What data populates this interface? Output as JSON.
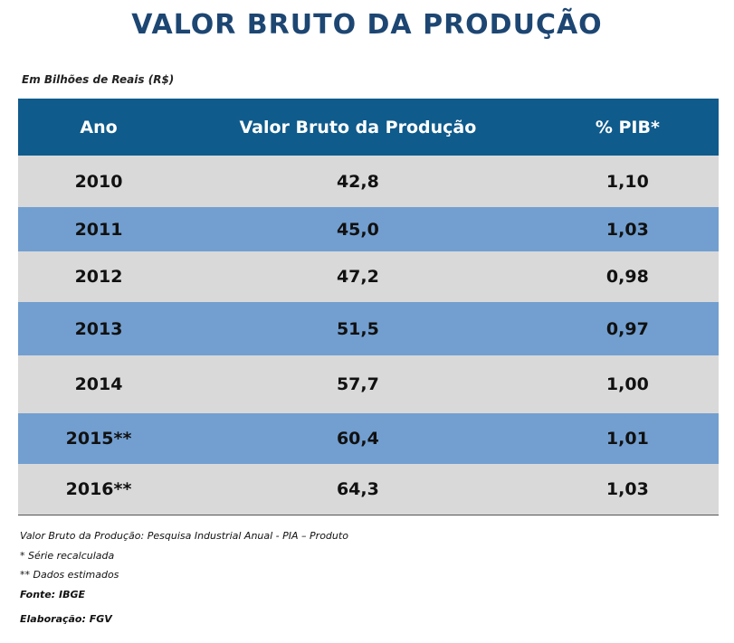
{
  "header": {
    "title": "VALOR BRUTO DA PRODUÇÃO",
    "subtitle": "Em Bilhões de Reais (R$)"
  },
  "table": {
    "columns": [
      "Ano",
      "Valor Bruto da Produção",
      "% PIB*"
    ],
    "rows": [
      [
        "2010",
        "42,8",
        "1,10"
      ],
      [
        "2011",
        "45,0",
        "1,03"
      ],
      [
        "2012",
        "47,2",
        "0,98"
      ],
      [
        "2013",
        "51,5",
        "0,97"
      ],
      [
        "2014",
        "57,7",
        "1,00"
      ],
      [
        "2015**",
        "60,4",
        "1,01"
      ],
      [
        "2016**",
        "64,3",
        "1,03"
      ]
    ]
  },
  "notes": [
    "Valor Bruto da Produção:  Pesquisa Industrial Anual  - PIA – Produto",
    "* Série recalculada",
    "** Dados estimados",
    "Fonte: IBGE",
    "Elaboração: FGV"
  ]
}
